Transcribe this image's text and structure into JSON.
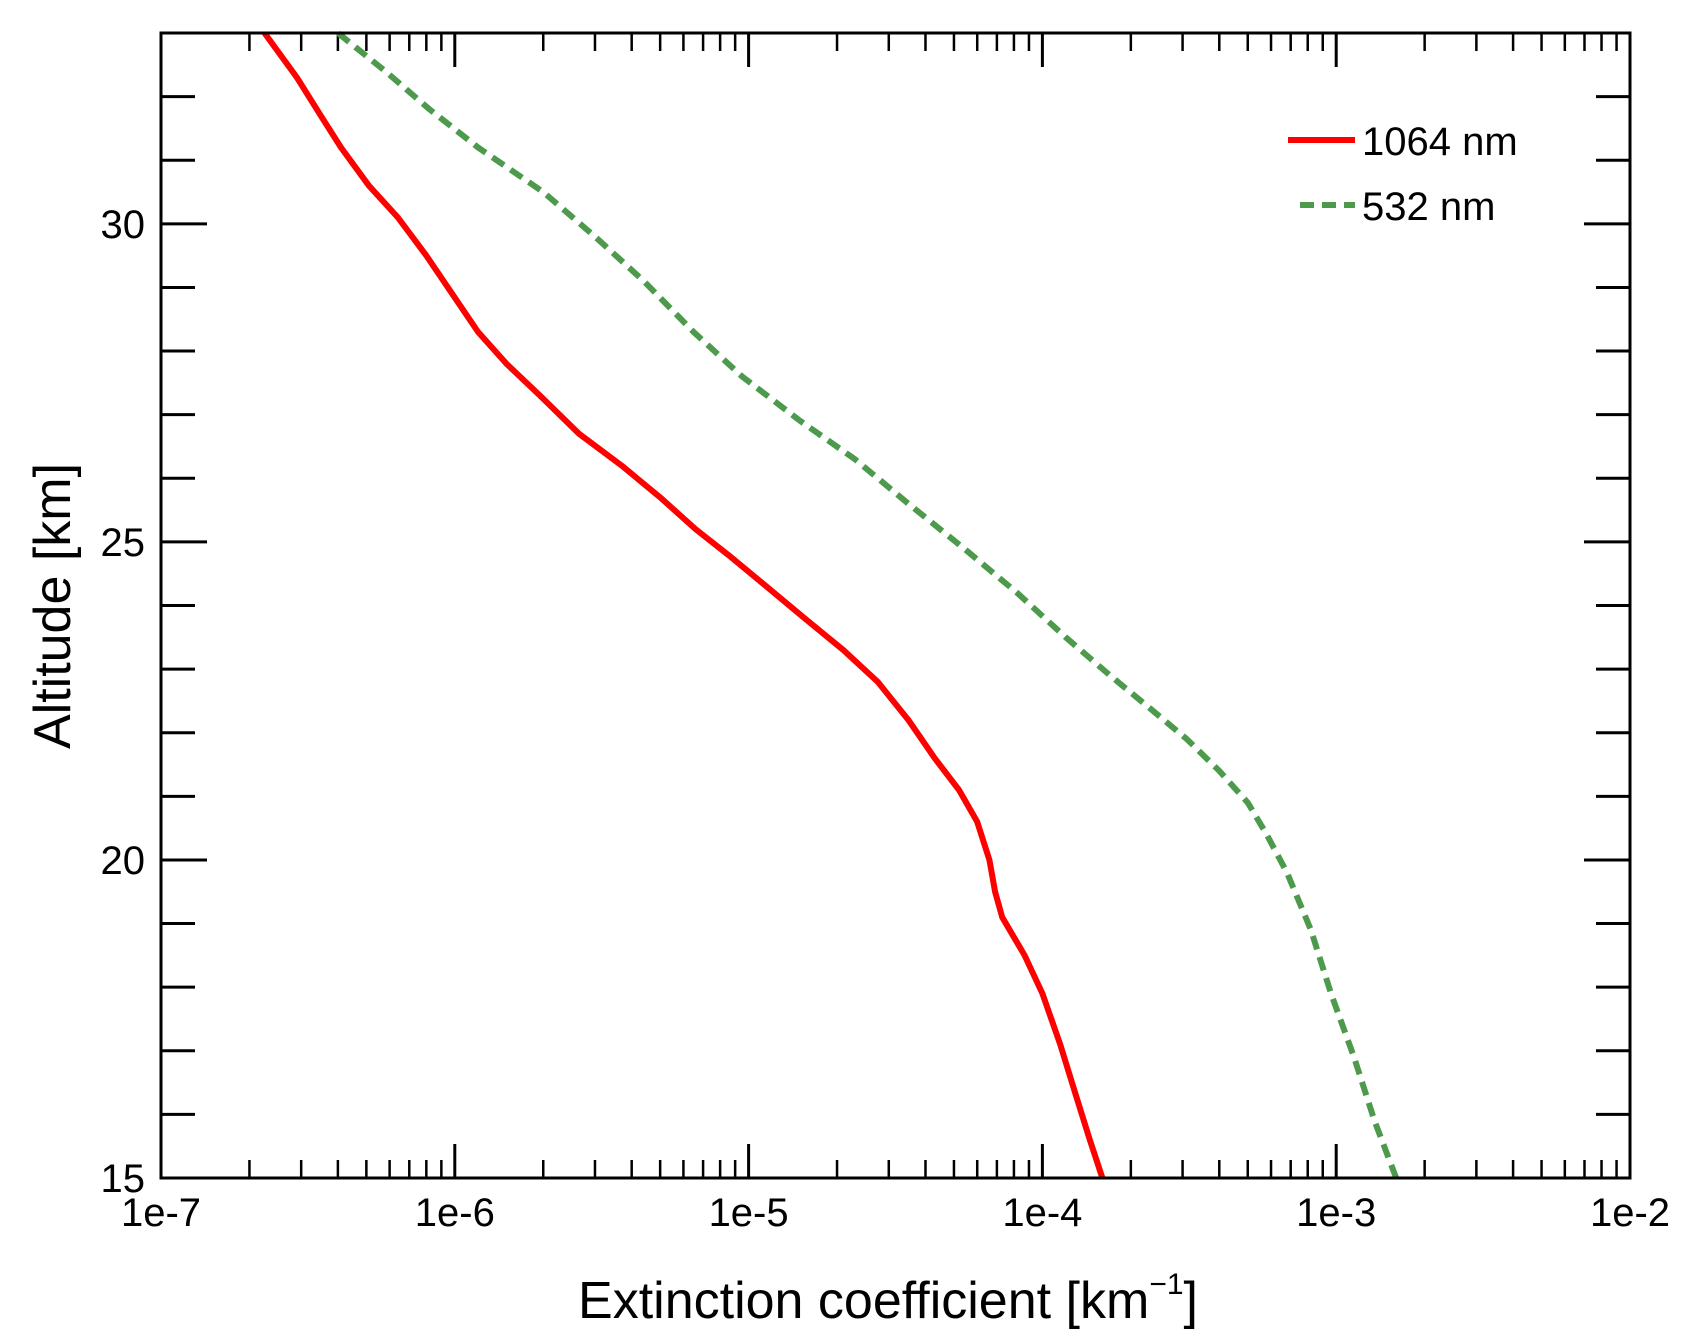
{
  "chart_data": {
    "type": "line",
    "title": "",
    "xlabel": "Extinction coefficient [km",
    "xlabel_unit_superscript": "−1",
    "xlabel_close": "]",
    "ylabel": "Altitude [km]",
    "xscale": "log",
    "xlim": [
      1e-07,
      0.01
    ],
    "ylim": [
      15,
      33
    ],
    "x_tick_values": [
      1e-07,
      1e-06,
      1e-05,
      0.0001,
      0.001,
      0.01
    ],
    "x_tick_labels": [
      "1e-7",
      "1e-6",
      "1e-5",
      "1e-4",
      "1e-3",
      "1e-2"
    ],
    "y_tick_values": [
      15,
      20,
      25,
      30
    ],
    "y_tick_labels": [
      "15",
      "20",
      "25",
      "30"
    ],
    "y_minor_step": 1,
    "legend_position": "top-right",
    "series": [
      {
        "name": "1064 nm",
        "color": "#ff0000",
        "style": "solid",
        "points": [
          [
            0.00016,
            15.0
          ],
          [
            0.000145,
            15.6
          ],
          [
            0.00013,
            16.3
          ],
          [
            0.000115,
            17.1
          ],
          [
            0.0001,
            17.9
          ],
          [
            8.7e-05,
            18.5
          ],
          [
            7.3e-05,
            19.1
          ],
          [
            6.9e-05,
            19.5
          ],
          [
            6.6e-05,
            20.0
          ],
          [
            6e-05,
            20.6
          ],
          [
            5.2e-05,
            21.1
          ],
          [
            4.3e-05,
            21.6
          ],
          [
            3.5e-05,
            22.2
          ],
          [
            2.75e-05,
            22.8
          ],
          [
            2.1e-05,
            23.3
          ],
          [
            1.55e-05,
            23.8
          ],
          [
            1.15e-05,
            24.3
          ],
          [
            8.5e-06,
            24.8
          ],
          [
            6.6e-06,
            25.2
          ],
          [
            5e-06,
            25.7
          ],
          [
            3.7e-06,
            26.2
          ],
          [
            2.65e-06,
            26.7
          ],
          [
            1.95e-06,
            27.3
          ],
          [
            1.5e-06,
            27.8
          ],
          [
            1.2e-06,
            28.3
          ],
          [
            9.8e-07,
            28.9
          ],
          [
            8e-07,
            29.5
          ],
          [
            6.4e-07,
            30.1
          ],
          [
            5.1e-07,
            30.6
          ],
          [
            4.1e-07,
            31.2
          ],
          [
            3.5e-07,
            31.7
          ],
          [
            2.9e-07,
            32.3
          ],
          [
            2.25e-07,
            33.0
          ]
        ]
      },
      {
        "name": "532 nm",
        "color": "#4d9a4d",
        "style": "dashed",
        "points": [
          [
            0.0016,
            15.0
          ],
          [
            0.00135,
            15.9
          ],
          [
            0.00115,
            16.9
          ],
          [
            0.00096,
            17.9
          ],
          [
            0.00082,
            18.9
          ],
          [
            0.00068,
            19.8
          ],
          [
            0.00058,
            20.4
          ],
          [
            0.0005,
            20.9
          ],
          [
            0.0004,
            21.4
          ],
          [
            0.00031,
            21.9
          ],
          [
            0.00023,
            22.4
          ],
          [
            0.00017,
            22.9
          ],
          [
            0.00012,
            23.5
          ],
          [
            8.2e-05,
            24.2
          ],
          [
            5.4e-05,
            24.9
          ],
          [
            3.5e-05,
            25.6
          ],
          [
            2.3e-05,
            26.3
          ],
          [
            1.5e-05,
            26.9
          ],
          [
            9.5e-06,
            27.6
          ],
          [
            6.5e-06,
            28.3
          ],
          [
            4.4e-06,
            29.1
          ],
          [
            3e-06,
            29.8
          ],
          [
            2e-06,
            30.5
          ],
          [
            1.2e-06,
            31.2
          ],
          [
            8.2e-07,
            31.8
          ],
          [
            5.8e-07,
            32.4
          ],
          [
            4e-07,
            33.0
          ]
        ]
      }
    ]
  }
}
